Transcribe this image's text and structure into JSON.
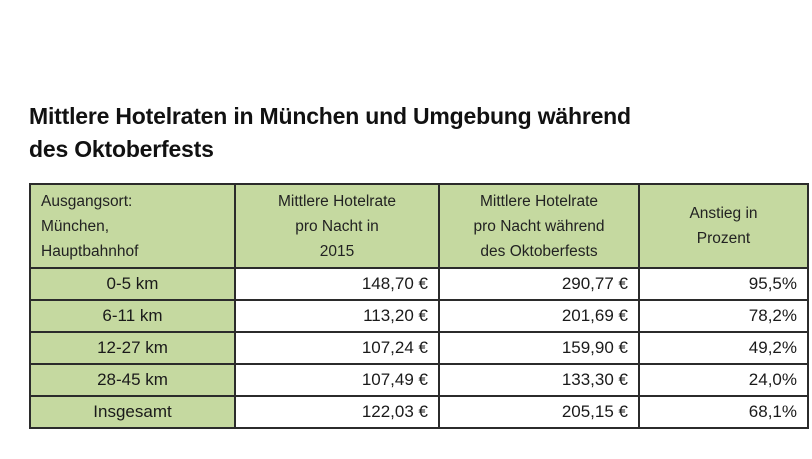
{
  "title": {
    "line1": "Mittlere Hotelraten in München und Umgebung während",
    "line2": "des Oktoberfests"
  },
  "table": {
    "headers": [
      [
        "Ausgangsort:",
        "München,",
        "Hauptbahnhof"
      ],
      [
        "Mittlere  Hotelrate",
        "pro Nacht in",
        "2015"
      ],
      [
        "Mittlere Hotelrate",
        "pro Nacht während",
        "des Oktoberfests"
      ],
      [
        "Anstieg in",
        "Prozent"
      ]
    ],
    "rows": [
      {
        "distance": "0-5 km",
        "rate_2015": "148,70 €",
        "rate_oktoberfest": "290,77 €",
        "increase": "95,5%"
      },
      {
        "distance": "6-11 km",
        "rate_2015": "113,20 €",
        "rate_oktoberfest": "201,69 €",
        "increase": "78,2%"
      },
      {
        "distance": "12-27 km",
        "rate_2015": "107,24 €",
        "rate_oktoberfest": "159,90 €",
        "increase": "49,2%"
      },
      {
        "distance": "28-45 km",
        "rate_2015": "107,49 €",
        "rate_oktoberfest": "133,30 €",
        "increase": "24,0%"
      },
      {
        "distance": "Insgesamt",
        "rate_2015": "122,03 €",
        "rate_oktoberfest": "205,15 €",
        "increase": "68,1%"
      }
    ]
  },
  "colors": {
    "header_fill": "#c5d9a0",
    "border": "#2b2b2b",
    "background": "#ffffff"
  }
}
